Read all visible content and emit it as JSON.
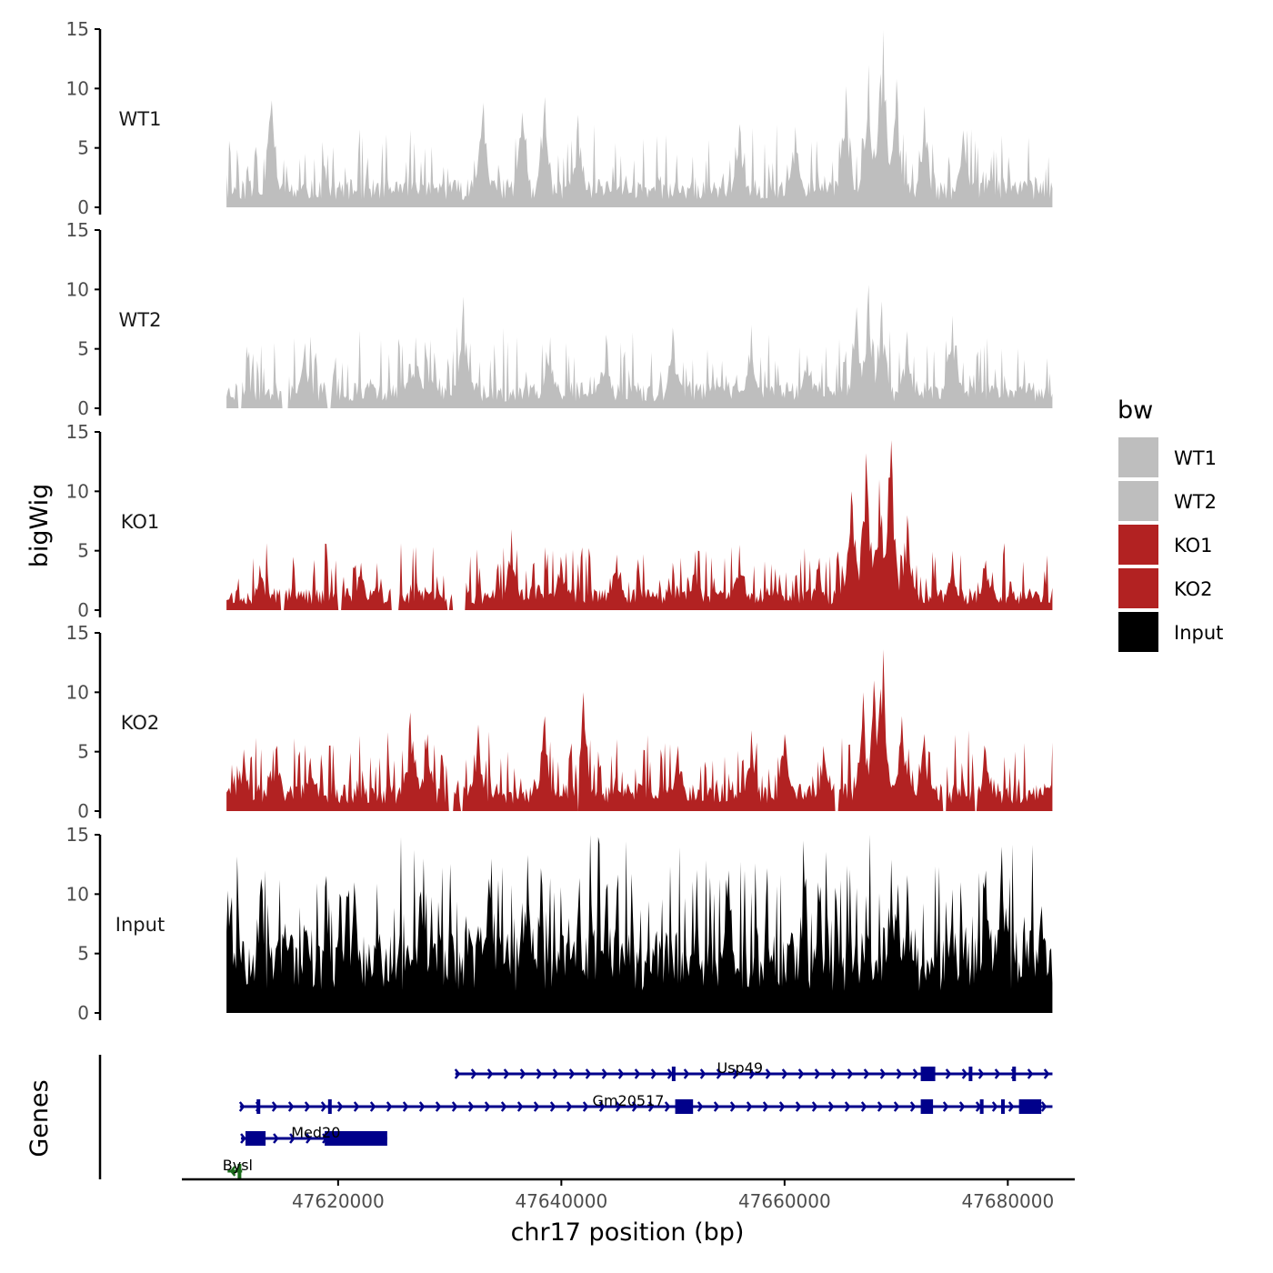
{
  "chart_data": {
    "type": "area",
    "xlabel": "chr17 position (bp)",
    "ylabel": "bigWig",
    "genes_label": "Genes",
    "xlim": [
      47606000,
      47686000
    ],
    "track_xrange": [
      47610000,
      47684000
    ],
    "ylim": [
      0,
      15
    ],
    "y_ticks": [
      0,
      5,
      10,
      15
    ],
    "x_ticks": [
      47620000,
      47640000,
      47660000,
      47680000
    ],
    "x_tick_labels": [
      "47620000",
      "47640000",
      "47660000",
      "47680000"
    ],
    "legend": {
      "title": "bw",
      "entries": [
        {
          "label": "WT1",
          "color": "#bebebe"
        },
        {
          "label": "WT2",
          "color": "#bebebe"
        },
        {
          "label": "KO1",
          "color": "#b22222"
        },
        {
          "label": "KO2",
          "color": "#b22222"
        },
        {
          "label": "Input",
          "color": "#000000"
        }
      ]
    },
    "series": [
      {
        "name": "WT1",
        "color": "#bebebe",
        "base": 1.5,
        "noise": 2.2,
        "seed": 11,
        "peaks": [
          [
            47614000,
            9.0
          ],
          [
            47633000,
            8.8
          ],
          [
            47636500,
            8.0
          ],
          [
            47638500,
            9.3
          ],
          [
            47641500,
            7.8
          ],
          [
            47656000,
            7.0
          ],
          [
            47661000,
            6.8
          ],
          [
            47665500,
            10.2
          ],
          [
            47667500,
            12.0
          ],
          [
            47668800,
            14.9
          ],
          [
            47670000,
            10.8
          ],
          [
            47672500,
            8.5
          ],
          [
            47676000,
            6.5
          ]
        ],
        "gaps": []
      },
      {
        "name": "WT2",
        "color": "#bebebe",
        "base": 1.4,
        "noise": 2.2,
        "seed": 23,
        "peaks": [
          [
            47617000,
            5.5
          ],
          [
            47627000,
            5.5
          ],
          [
            47631200,
            9.4
          ],
          [
            47639000,
            6.0
          ],
          [
            47644000,
            6.2
          ],
          [
            47650000,
            6.8
          ],
          [
            47657000,
            7.0
          ],
          [
            47662000,
            4.5
          ],
          [
            47666500,
            8.5
          ],
          [
            47667500,
            10.4
          ],
          [
            47668700,
            9.0
          ],
          [
            47671000,
            6.5
          ],
          [
            47675000,
            7.8
          ]
        ],
        "gaps": [
          [
            47611000,
            47611400
          ],
          [
            47615000,
            47615600
          ],
          [
            47619000,
            47619400
          ]
        ]
      },
      {
        "name": "KO1",
        "color": "#b22222",
        "base": 1.2,
        "noise": 1.9,
        "seed": 37,
        "peaks": [
          [
            47613000,
            3.8
          ],
          [
            47622000,
            4.0
          ],
          [
            47635500,
            6.8
          ],
          [
            47640000,
            4.5
          ],
          [
            47645000,
            4.6
          ],
          [
            47652000,
            4.2
          ],
          [
            47656000,
            5.5
          ],
          [
            47663000,
            3.5
          ],
          [
            47666000,
            10.0
          ],
          [
            47667300,
            13.2
          ],
          [
            47668500,
            11.0
          ],
          [
            47669500,
            14.3
          ],
          [
            47671000,
            8.0
          ],
          [
            47675000,
            5.0
          ],
          [
            47678000,
            4.2
          ]
        ],
        "gaps": [
          [
            47614800,
            47615200
          ],
          [
            47620000,
            47620300
          ],
          [
            47624700,
            47625400
          ],
          [
            47629700,
            47630000
          ],
          [
            47630200,
            47631400
          ]
        ]
      },
      {
        "name": "KO2",
        "color": "#b22222",
        "base": 1.5,
        "noise": 2.1,
        "seed": 53,
        "peaks": [
          [
            47611500,
            5.2
          ],
          [
            47614500,
            5.5
          ],
          [
            47617500,
            4.5
          ],
          [
            47626500,
            8.3
          ],
          [
            47628000,
            6.5
          ],
          [
            47632500,
            7.3
          ],
          [
            47638500,
            8.0
          ],
          [
            47642000,
            10.0
          ],
          [
            47650500,
            5.5
          ],
          [
            47657000,
            6.8
          ],
          [
            47660000,
            6.5
          ],
          [
            47663500,
            5.5
          ],
          [
            47667000,
            10.0
          ],
          [
            47668000,
            11.0
          ],
          [
            47668800,
            13.6
          ],
          [
            47670500,
            8.0
          ],
          [
            47672500,
            6.5
          ],
          [
            47678000,
            5.0
          ]
        ],
        "gaps": [
          [
            47629900,
            47630400
          ],
          [
            47631000,
            47631200
          ],
          [
            47641500,
            47641600
          ],
          [
            47664500,
            47664800
          ],
          [
            47674200,
            47674500
          ],
          [
            47677000,
            47677300
          ]
        ]
      },
      {
        "name": "Input",
        "color": "#000000",
        "base": 4.6,
        "noise": 4.0,
        "seed": 71,
        "peaks": [
          [
            47610100,
            10.3
          ],
          [
            47613000,
            9.8
          ],
          [
            47621500,
            11.0
          ],
          [
            47633500,
            11.3
          ],
          [
            47637000,
            13.3
          ],
          [
            47644000,
            10.4
          ],
          [
            47655000,
            12.0
          ],
          [
            47663000,
            11.0
          ],
          [
            47669500,
            12.9
          ],
          [
            47671000,
            11.6
          ],
          [
            47675000,
            10.4
          ],
          [
            47678000,
            12.0
          ],
          [
            47679500,
            14.0
          ],
          [
            47683000,
            9.0
          ]
        ],
        "gaps": []
      }
    ],
    "genes": [
      {
        "name": "Usp49",
        "start": 47630500,
        "end": 47684000,
        "strand": "+",
        "color": "#00008b",
        "row": 0,
        "exons": [
          [
            47649900,
            47650100
          ],
          [
            47672200,
            47673500
          ],
          [
            47676500,
            47676700
          ],
          [
            47680400,
            47680600
          ]
        ],
        "label_pos": 47656000
      },
      {
        "name": "Gm20517",
        "start": 47611200,
        "end": 47684000,
        "strand": "+",
        "color": "#00008b",
        "row": 1,
        "exons": [
          [
            47612700,
            47612900
          ],
          [
            47619100,
            47619300
          ],
          [
            47650200,
            47651800
          ],
          [
            47672200,
            47673300
          ],
          [
            47677500,
            47677700
          ],
          [
            47679400,
            47679600
          ],
          [
            47681000,
            47683000
          ]
        ],
        "label_pos": 47646000
      },
      {
        "name": "Med20",
        "start": 47611300,
        "end": 47624400,
        "strand": "+",
        "color": "#00008b",
        "row": 2,
        "exons": [
          [
            47611700,
            47613500
          ],
          [
            47618800,
            47624400
          ]
        ],
        "label_pos": 47618000
      },
      {
        "name": "Bysl",
        "start": 47610100,
        "end": 47611400,
        "strand": "-",
        "color": "#1a6b1a",
        "row": 3,
        "exons": [
          [
            47611000,
            47611300
          ]
        ],
        "label_pos": 47611000
      }
    ]
  }
}
